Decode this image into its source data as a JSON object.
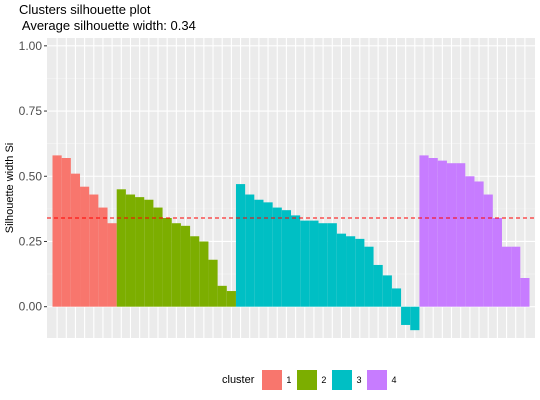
{
  "chart_data": {
    "type": "bar",
    "title": "Clusters silhouette plot",
    "subtitle": " Average silhouette width: 0.34",
    "xlabel": "",
    "ylabel": "Silhouette width Si",
    "ylim": [
      -0.12,
      1.03
    ],
    "yticks": [
      0.0,
      0.25,
      0.5,
      0.75,
      1.0
    ],
    "ytick_labels": [
      "0.00",
      "0.25",
      "0.50",
      "0.75",
      "1.00"
    ],
    "average_line": 0.34,
    "average_line_color": "#FF0000",
    "grid": true,
    "legend_position": "bottom",
    "legend_title": "cluster",
    "series": [
      {
        "name": "1",
        "color": "#F8766D",
        "values": [
          0.58,
          0.57,
          0.51,
          0.46,
          0.43,
          0.38,
          0.32
        ]
      },
      {
        "name": "2",
        "color": "#7CAE00",
        "values": [
          0.45,
          0.43,
          0.42,
          0.41,
          0.38,
          0.34,
          0.32,
          0.31,
          0.27,
          0.25,
          0.18,
          0.08,
          0.06
        ]
      },
      {
        "name": "3",
        "color": "#00BFC4",
        "values": [
          0.47,
          0.43,
          0.41,
          0.4,
          0.38,
          0.37,
          0.35,
          0.33,
          0.33,
          0.32,
          0.32,
          0.28,
          0.27,
          0.26,
          0.23,
          0.16,
          0.12,
          0.07,
          -0.07,
          -0.09
        ]
      },
      {
        "name": "4",
        "color": "#C77CFF",
        "values": [
          0.58,
          0.57,
          0.56,
          0.55,
          0.55,
          0.5,
          0.48,
          0.43,
          0.34,
          0.23,
          0.23,
          0.11
        ]
      }
    ]
  }
}
